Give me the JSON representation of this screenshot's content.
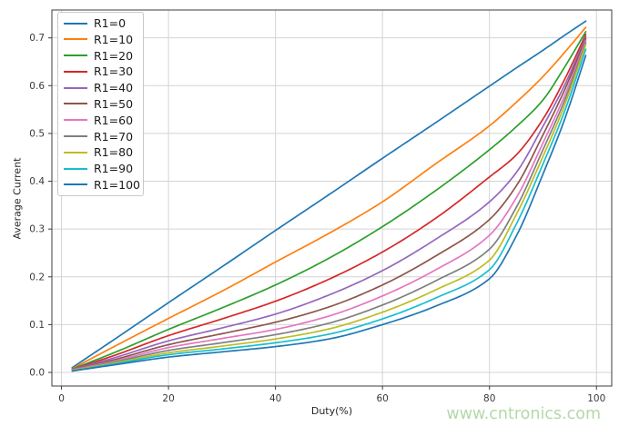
{
  "watermark": {
    "text": "www.cntronics.com",
    "color": "#b4d8a8"
  },
  "style": {
    "grid_color": "#d4d4d4",
    "spine_color": "#3c3c3c",
    "tick_label_color": "#3a3a3a",
    "background": "#ffffff"
  },
  "chart_data": {
    "type": "line",
    "title": "",
    "xlabel": "Duty(%)",
    "ylabel": "Average Current",
    "grid": true,
    "legend_position": "upper left",
    "xlim": [
      -1.8,
      102.85
    ],
    "ylim": [
      -0.0285,
      0.7583
    ],
    "xticks": [
      0,
      20,
      40,
      60,
      80,
      100
    ],
    "xtick_labels": [
      "0",
      "20",
      "40",
      "60",
      "80",
      "100"
    ],
    "yticks": [
      0.0,
      0.1,
      0.2,
      0.3,
      0.4,
      0.5,
      0.6,
      0.7
    ],
    "ytick_labels": [
      "0.0",
      "0.1",
      "0.2",
      "0.3",
      "0.4",
      "0.5",
      "0.6",
      "0.7"
    ],
    "x": [
      2,
      10,
      20,
      30,
      40,
      50,
      60,
      70,
      80,
      85,
      90,
      94,
      98
    ],
    "series": [
      {
        "name": "R1=0",
        "color": "#1f77b4",
        "values": [
          0.01,
          0.07,
          0.146,
          0.221,
          0.297,
          0.372,
          0.448,
          0.523,
          0.599,
          0.637,
          0.674,
          0.705,
          0.735
        ]
      },
      {
        "name": "R1=10",
        "color": "#ff7f0e",
        "values": [
          0.008,
          0.055,
          0.113,
          0.17,
          0.231,
          0.291,
          0.357,
          0.437,
          0.516,
          0.565,
          0.619,
          0.669,
          0.722
        ]
      },
      {
        "name": "R1=20",
        "color": "#2ca02c",
        "values": [
          0.007,
          0.042,
          0.09,
          0.135,
          0.183,
          0.239,
          0.305,
          0.381,
          0.466,
          0.514,
          0.57,
          0.638,
          0.713
        ]
      },
      {
        "name": "R1=30",
        "color": "#d62728",
        "values": [
          0.006,
          0.036,
          0.077,
          0.112,
          0.149,
          0.195,
          0.252,
          0.323,
          0.409,
          0.455,
          0.53,
          0.612,
          0.707
        ]
      },
      {
        "name": "R1=40",
        "color": "#9467bd",
        "values": [
          0.006,
          0.031,
          0.066,
          0.093,
          0.122,
          0.162,
          0.213,
          0.279,
          0.357,
          0.418,
          0.515,
          0.6,
          0.702
        ]
      },
      {
        "name": "R1=50",
        "color": "#8c564b",
        "values": [
          0.005,
          0.027,
          0.058,
          0.081,
          0.105,
          0.137,
          0.183,
          0.244,
          0.32,
          0.39,
          0.497,
          0.59,
          0.698
        ]
      },
      {
        "name": "R1=60",
        "color": "#e377c2",
        "values": [
          0.005,
          0.024,
          0.052,
          0.071,
          0.09,
          0.118,
          0.16,
          0.215,
          0.287,
          0.365,
          0.48,
          0.578,
          0.694
        ]
      },
      {
        "name": "R1=70",
        "color": "#7f7f7f",
        "values": [
          0.004,
          0.022,
          0.046,
          0.062,
          0.079,
          0.103,
          0.141,
          0.192,
          0.258,
          0.345,
          0.466,
          0.568,
          0.69
        ]
      },
      {
        "name": "R1=80",
        "color": "#bcbd22",
        "values": [
          0.004,
          0.02,
          0.041,
          0.055,
          0.07,
          0.091,
          0.126,
          0.173,
          0.235,
          0.33,
          0.452,
          0.558,
          0.686
        ]
      },
      {
        "name": "R1=90",
        "color": "#17becf",
        "values": [
          0.003,
          0.018,
          0.037,
          0.049,
          0.062,
          0.08,
          0.112,
          0.156,
          0.215,
          0.31,
          0.436,
          0.545,
          0.676
        ]
      },
      {
        "name": "R1=100",
        "color": "#1f77b4",
        "values": [
          0.003,
          0.016,
          0.032,
          0.043,
          0.054,
          0.07,
          0.1,
          0.139,
          0.196,
          0.285,
          0.415,
          0.528,
          0.663
        ]
      }
    ]
  }
}
